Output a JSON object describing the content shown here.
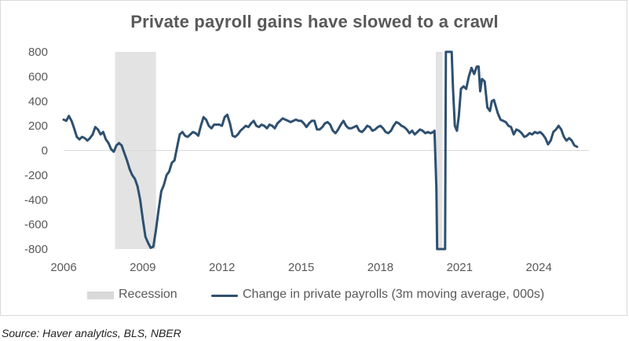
{
  "chart_data": {
    "type": "line",
    "title": "Private payroll gains have slowed to a crawl",
    "xlabel": "",
    "ylabel": "",
    "xlim": [
      2006,
      2025.9
    ],
    "ylim": [
      -800,
      800
    ],
    "x_ticks": [
      2006,
      2009,
      2012,
      2015,
      2018,
      2021,
      2024
    ],
    "y_ticks": [
      800,
      600,
      400,
      200,
      0,
      -200,
      -400,
      -600,
      -800
    ],
    "grid": false,
    "legend_position": "bottom",
    "recessions": [
      {
        "name": "Recession",
        "start": 2007.95,
        "end": 2009.5
      },
      {
        "name": "Recession",
        "start": 2020.1,
        "end": 2020.35
      }
    ],
    "series": [
      {
        "name": "Change in private payrolls (3m moving average, 000s)",
        "color": "#2e5070",
        "points": [
          [
            2006.0,
            250
          ],
          [
            2006.1,
            240
          ],
          [
            2006.2,
            280
          ],
          [
            2006.3,
            240
          ],
          [
            2006.4,
            180
          ],
          [
            2006.5,
            110
          ],
          [
            2006.6,
            90
          ],
          [
            2006.7,
            110
          ],
          [
            2006.8,
            100
          ],
          [
            2006.9,
            80
          ],
          [
            2007.0,
            100
          ],
          [
            2007.1,
            130
          ],
          [
            2007.2,
            190
          ],
          [
            2007.3,
            170
          ],
          [
            2007.4,
            130
          ],
          [
            2007.5,
            150
          ],
          [
            2007.6,
            90
          ],
          [
            2007.7,
            60
          ],
          [
            2007.8,
            10
          ],
          [
            2007.9,
            -10
          ],
          [
            2008.0,
            40
          ],
          [
            2008.1,
            60
          ],
          [
            2008.2,
            40
          ],
          [
            2008.3,
            -20
          ],
          [
            2008.4,
            -80
          ],
          [
            2008.5,
            -150
          ],
          [
            2008.6,
            -200
          ],
          [
            2008.7,
            -230
          ],
          [
            2008.8,
            -290
          ],
          [
            2008.9,
            -400
          ],
          [
            2009.0,
            -560
          ],
          [
            2009.1,
            -700
          ],
          [
            2009.2,
            -750
          ],
          [
            2009.3,
            -790
          ],
          [
            2009.4,
            -780
          ],
          [
            2009.5,
            -640
          ],
          [
            2009.6,
            -480
          ],
          [
            2009.7,
            -330
          ],
          [
            2009.8,
            -280
          ],
          [
            2009.9,
            -200
          ],
          [
            2010.0,
            -170
          ],
          [
            2010.1,
            -100
          ],
          [
            2010.2,
            -80
          ],
          [
            2010.3,
            30
          ],
          [
            2010.4,
            130
          ],
          [
            2010.5,
            150
          ],
          [
            2010.6,
            120
          ],
          [
            2010.7,
            110
          ],
          [
            2010.8,
            130
          ],
          [
            2010.9,
            150
          ],
          [
            2011.0,
            140
          ],
          [
            2011.1,
            120
          ],
          [
            2011.2,
            200
          ],
          [
            2011.3,
            270
          ],
          [
            2011.4,
            250
          ],
          [
            2011.5,
            200
          ],
          [
            2011.6,
            180
          ],
          [
            2011.7,
            210
          ],
          [
            2011.8,
            210
          ],
          [
            2011.9,
            210
          ],
          [
            2012.0,
            200
          ],
          [
            2012.1,
            270
          ],
          [
            2012.2,
            290
          ],
          [
            2012.3,
            220
          ],
          [
            2012.4,
            120
          ],
          [
            2012.5,
            110
          ],
          [
            2012.6,
            130
          ],
          [
            2012.7,
            160
          ],
          [
            2012.8,
            180
          ],
          [
            2012.9,
            200
          ],
          [
            2013.0,
            190
          ],
          [
            2013.1,
            220
          ],
          [
            2013.2,
            240
          ],
          [
            2013.3,
            200
          ],
          [
            2013.4,
            190
          ],
          [
            2013.5,
            210
          ],
          [
            2013.6,
            200
          ],
          [
            2013.7,
            180
          ],
          [
            2013.8,
            210
          ],
          [
            2013.9,
            200
          ],
          [
            2014.0,
            180
          ],
          [
            2014.1,
            220
          ],
          [
            2014.2,
            240
          ],
          [
            2014.3,
            260
          ],
          [
            2014.4,
            250
          ],
          [
            2014.5,
            240
          ],
          [
            2014.6,
            230
          ],
          [
            2014.7,
            240
          ],
          [
            2014.8,
            250
          ],
          [
            2014.9,
            240
          ],
          [
            2015.0,
            240
          ],
          [
            2015.1,
            220
          ],
          [
            2015.2,
            190
          ],
          [
            2015.3,
            220
          ],
          [
            2015.4,
            240
          ],
          [
            2015.5,
            240
          ],
          [
            2015.6,
            170
          ],
          [
            2015.7,
            170
          ],
          [
            2015.8,
            190
          ],
          [
            2015.9,
            220
          ],
          [
            2016.0,
            230
          ],
          [
            2016.1,
            210
          ],
          [
            2016.2,
            160
          ],
          [
            2016.3,
            140
          ],
          [
            2016.4,
            170
          ],
          [
            2016.5,
            210
          ],
          [
            2016.6,
            240
          ],
          [
            2016.7,
            200
          ],
          [
            2016.8,
            180
          ],
          [
            2016.9,
            180
          ],
          [
            2017.0,
            190
          ],
          [
            2017.1,
            200
          ],
          [
            2017.2,
            160
          ],
          [
            2017.3,
            150
          ],
          [
            2017.4,
            170
          ],
          [
            2017.5,
            200
          ],
          [
            2017.6,
            190
          ],
          [
            2017.7,
            160
          ],
          [
            2017.8,
            170
          ],
          [
            2017.9,
            190
          ],
          [
            2018.0,
            200
          ],
          [
            2018.1,
            180
          ],
          [
            2018.2,
            150
          ],
          [
            2018.3,
            140
          ],
          [
            2018.4,
            160
          ],
          [
            2018.5,
            200
          ],
          [
            2018.6,
            230
          ],
          [
            2018.7,
            220
          ],
          [
            2018.8,
            200
          ],
          [
            2018.9,
            190
          ],
          [
            2019.0,
            170
          ],
          [
            2019.1,
            140
          ],
          [
            2019.2,
            160
          ],
          [
            2019.3,
            130
          ],
          [
            2019.4,
            150
          ],
          [
            2019.5,
            170
          ],
          [
            2019.6,
            160
          ],
          [
            2019.7,
            140
          ],
          [
            2019.8,
            150
          ],
          [
            2019.9,
            140
          ],
          [
            2020.0,
            150
          ],
          [
            2020.05,
            160
          ],
          [
            2020.12,
            -300
          ],
          [
            2020.15,
            -800
          ],
          [
            2020.45,
            -800
          ],
          [
            2020.48,
            800
          ],
          [
            2020.7,
            800
          ],
          [
            2020.75,
            500
          ],
          [
            2020.82,
            200
          ],
          [
            2020.9,
            160
          ],
          [
            2020.97,
            280
          ],
          [
            2021.05,
            500
          ],
          [
            2021.15,
            520
          ],
          [
            2021.25,
            500
          ],
          [
            2021.35,
            600
          ],
          [
            2021.45,
            670
          ],
          [
            2021.55,
            620
          ],
          [
            2021.65,
            680
          ],
          [
            2021.72,
            680
          ],
          [
            2021.78,
            480
          ],
          [
            2021.85,
            580
          ],
          [
            2021.95,
            560
          ],
          [
            2022.05,
            350
          ],
          [
            2022.15,
            320
          ],
          [
            2022.22,
            400
          ],
          [
            2022.3,
            410
          ],
          [
            2022.45,
            300
          ],
          [
            2022.55,
            250
          ],
          [
            2022.65,
            240
          ],
          [
            2022.75,
            230
          ],
          [
            2022.85,
            200
          ],
          [
            2022.95,
            190
          ],
          [
            2023.05,
            130
          ],
          [
            2023.15,
            170
          ],
          [
            2023.25,
            160
          ],
          [
            2023.35,
            140
          ],
          [
            2023.45,
            110
          ],
          [
            2023.55,
            120
          ],
          [
            2023.65,
            140
          ],
          [
            2023.75,
            130
          ],
          [
            2023.85,
            150
          ],
          [
            2023.95,
            140
          ],
          [
            2024.05,
            150
          ],
          [
            2024.15,
            130
          ],
          [
            2024.25,
            100
          ],
          [
            2024.35,
            50
          ],
          [
            2024.45,
            80
          ],
          [
            2024.55,
            150
          ],
          [
            2024.65,
            170
          ],
          [
            2024.75,
            200
          ],
          [
            2024.85,
            170
          ],
          [
            2024.95,
            110
          ],
          [
            2025.05,
            80
          ],
          [
            2025.15,
            100
          ],
          [
            2025.25,
            80
          ],
          [
            2025.35,
            40
          ],
          [
            2025.45,
            30
          ]
        ]
      }
    ]
  },
  "legend": {
    "recession_label": "Recession",
    "series_label": "Change in private payrolls (3m moving average, 000s)"
  },
  "source_text": "Source: Haver analytics, BLS, NBER"
}
